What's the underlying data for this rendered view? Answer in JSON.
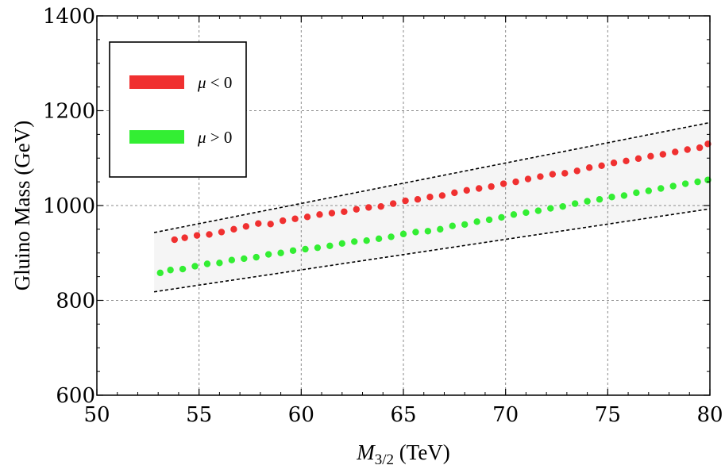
{
  "chart_data": {
    "type": "scatter",
    "title": "",
    "xlabel_main": "M",
    "xlabel_sub": "3/2",
    "xlabel_units": " (TeV)",
    "ylabel": "Gluino Mass (GeV)",
    "xlim": [
      50,
      80
    ],
    "ylim": [
      600,
      1400
    ],
    "x_ticks": [
      50,
      55,
      60,
      65,
      70,
      75,
      80
    ],
    "y_ticks": [
      600,
      800,
      1000,
      1200,
      1400
    ],
    "x_tick_labels": [
      "50",
      "55",
      "60",
      "65",
      "70",
      "75",
      "80"
    ],
    "y_tick_labels": [
      "600",
      "800",
      "1000",
      "1200",
      "1400"
    ],
    "grid": true,
    "legend_position": "top-left",
    "band": {
      "upper": [
        [
          52.8,
          943
        ],
        [
          80,
          1175
        ]
      ],
      "lower": [
        [
          52.8,
          818
        ],
        [
          80,
          993
        ]
      ]
    },
    "series": [
      {
        "name": "mu-negative",
        "label_symbol": "μ",
        "label_rest": " < 0",
        "color": "#f03030",
        "points": [
          [
            53.8,
            928
          ],
          [
            54.3,
            932
          ],
          [
            54.9,
            937
          ],
          [
            55.5,
            939
          ],
          [
            56.1,
            944
          ],
          [
            56.7,
            950
          ],
          [
            57.3,
            956
          ],
          [
            57.9,
            962
          ],
          [
            58.5,
            961
          ],
          [
            59.1,
            968
          ],
          [
            59.7,
            972
          ],
          [
            60.3,
            976
          ],
          [
            60.9,
            981
          ],
          [
            61.5,
            984
          ],
          [
            62.1,
            987
          ],
          [
            62.7,
            992
          ],
          [
            63.3,
            996
          ],
          [
            63.9,
            998
          ],
          [
            64.5,
            1004
          ],
          [
            65.1,
            1010
          ],
          [
            65.7,
            1013
          ],
          [
            66.3,
            1018
          ],
          [
            66.9,
            1021
          ],
          [
            67.5,
            1027
          ],
          [
            68.1,
            1032
          ],
          [
            68.7,
            1036
          ],
          [
            69.3,
            1040
          ],
          [
            69.9,
            1046
          ],
          [
            70.5,
            1050
          ],
          [
            71.1,
            1056
          ],
          [
            71.7,
            1061
          ],
          [
            72.3,
            1066
          ],
          [
            72.9,
            1068
          ],
          [
            73.5,
            1073
          ],
          [
            74.1,
            1080
          ],
          [
            74.7,
            1084
          ],
          [
            75.3,
            1090
          ],
          [
            75.9,
            1094
          ],
          [
            76.5,
            1099
          ],
          [
            77.1,
            1104
          ],
          [
            77.7,
            1108
          ],
          [
            78.3,
            1113
          ],
          [
            78.9,
            1118
          ],
          [
            79.5,
            1122
          ],
          [
            79.9,
            1130
          ]
        ]
      },
      {
        "name": "mu-positive",
        "label_symbol": "μ",
        "label_rest": " > 0",
        "color": "#33ee33",
        "points": [
          [
            53.1,
            858
          ],
          [
            53.6,
            864
          ],
          [
            54.2,
            866
          ],
          [
            54.8,
            872
          ],
          [
            55.4,
            877
          ],
          [
            56.0,
            879
          ],
          [
            56.6,
            885
          ],
          [
            57.2,
            888
          ],
          [
            57.8,
            891
          ],
          [
            58.4,
            897
          ],
          [
            59.0,
            900
          ],
          [
            59.6,
            905
          ],
          [
            60.2,
            908
          ],
          [
            60.8,
            911
          ],
          [
            61.4,
            915
          ],
          [
            62.0,
            920
          ],
          [
            62.6,
            924
          ],
          [
            63.2,
            926
          ],
          [
            63.8,
            930
          ],
          [
            64.4,
            934
          ],
          [
            65.0,
            940
          ],
          [
            65.6,
            944
          ],
          [
            66.2,
            946
          ],
          [
            66.8,
            950
          ],
          [
            67.4,
            957
          ],
          [
            68.0,
            960
          ],
          [
            68.6,
            966
          ],
          [
            69.2,
            970
          ],
          [
            69.8,
            975
          ],
          [
            70.4,
            981
          ],
          [
            71.0,
            985
          ],
          [
            71.6,
            989
          ],
          [
            72.2,
            994
          ],
          [
            72.8,
            998
          ],
          [
            73.4,
            1004
          ],
          [
            74.0,
            1009
          ],
          [
            74.6,
            1013
          ],
          [
            75.2,
            1018
          ],
          [
            75.8,
            1021
          ],
          [
            76.4,
            1027
          ],
          [
            77.0,
            1031
          ],
          [
            77.6,
            1036
          ],
          [
            78.2,
            1041
          ],
          [
            78.8,
            1046
          ],
          [
            79.4,
            1050
          ],
          [
            79.9,
            1054
          ]
        ]
      }
    ]
  }
}
